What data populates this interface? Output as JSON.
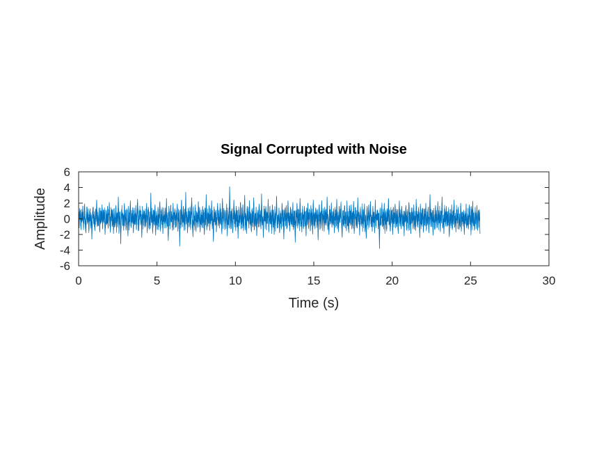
{
  "chart_data": {
    "type": "line",
    "title": "Signal Corrupted with Noise",
    "xlabel": "Time (s)",
    "ylabel": "Amplitude",
    "xlim": [
      0,
      30
    ],
    "ylim": [
      -6,
      6
    ],
    "xticks": [
      0,
      5,
      10,
      15,
      20,
      25,
      30
    ],
    "yticks": [
      -6,
      -4,
      -2,
      0,
      2,
      4,
      6
    ],
    "grid": false,
    "box": true,
    "series": [
      {
        "color": "#0072BD",
        "sample_interval": 0.04,
        "x_start": 0,
        "x_end": 25.6,
        "values": [
          0.3,
          -0.8,
          1.2,
          0.5,
          -1.4,
          0.9,
          -0.3,
          1.6,
          -1.1,
          0.2,
          1.9,
          -0.7,
          -1.8,
          0.6,
          1.1,
          -0.4,
          0.8,
          -1.5,
          0.1,
          1.3,
          -0.9,
          0.4,
          -2.6,
          0.7,
          1.5,
          -0.6,
          0.3,
          -1.2,
          1.0,
          -0.2,
          2.4,
          -1.0,
          0.5,
          -0.9,
          1.4,
          -1.7,
          0.6,
          0.2,
          -0.5,
          1.8,
          -1.3,
          0.9,
          -0.1,
          1.2,
          -2.0,
          0.4,
          0.8,
          -0.7,
          1.6,
          -1.1,
          0.3,
          2.1,
          -0.8,
          -1.4,
          0.7,
          1.0,
          -0.3,
          0.5,
          -1.9,
          1.3,
          -0.6,
          0.2,
          1.7,
          -1.2,
          0.8,
          -0.4,
          2.8,
          -1.6,
          0.1,
          0.9,
          -3.2,
          0.6,
          1.2,
          -0.8,
          0.4,
          -1.1,
          1.9,
          -0.5,
          0.7,
          -1.4,
          1.1,
          0.3,
          -2.2,
          1.5,
          -0.9,
          0.2,
          2.3,
          -1.0,
          0.6,
          -0.3,
          1.4,
          -1.8,
          0.9,
          0.1,
          -0.6,
          1.7,
          -1.3,
          0.5,
          2.5,
          -0.7,
          -1.5,
          0.8,
          1.2,
          -0.2,
          0.4,
          -2.4,
          1.6,
          -0.8,
          0.3,
          1.0,
          -1.1,
          0.7,
          -0.4,
          2.0,
          -1.6,
          0.2,
          1.3,
          -0.9,
          0.6,
          -1.2,
          3.3,
          -0.5,
          0.9,
          -1.7,
          0.4,
          1.1,
          -0.3,
          1.8,
          -2.1,
          0.7,
          0.2,
          -0.8,
          1.5,
          -1.0,
          0.3,
          2.2,
          -1.4,
          0.6,
          -0.2,
          1.2,
          -1.9,
          0.8,
          0.1,
          -0.6,
          1.4,
          -1.2,
          2.6,
          -0.7,
          0.5,
          -2.8,
          1.0,
          0.3,
          -0.9,
          1.7,
          -0.4,
          0.6,
          -1.5,
          2.0,
          -0.8,
          0.2,
          1.3,
          -1.1,
          0.7,
          -0.3,
          1.9,
          -1.6,
          0.4,
          0.9,
          -3.5,
          1.1,
          -0.5,
          2.4,
          -1.0,
          0.2,
          1.6,
          -0.7,
          0.8,
          -1.3,
          3.4,
          -0.6,
          0.3,
          -1.8,
          1.2,
          0.5,
          -0.9,
          1.5,
          -1.2,
          0.6,
          2.7,
          -0.4,
          -2.3,
          1.0,
          0.1,
          -0.7,
          1.8,
          -1.4,
          0.4,
          0.8,
          -1.0,
          2.2,
          -0.5,
          1.3,
          -1.7,
          0.6,
          0.2,
          -1.1,
          1.6,
          -0.3,
          0.9,
          -2.0,
          1.4,
          -0.8,
          3.1,
          -1.3,
          0.5,
          0.1,
          -0.6,
          1.7,
          -1.5,
          0.7,
          -0.2,
          2.3,
          -1.0,
          0.4,
          -2.9,
          1.2,
          0.8,
          -0.4,
          1.0,
          -1.6,
          0.3,
          2.0,
          -0.9,
          0.6,
          -1.2,
          1.5,
          -0.1,
          0.9,
          -1.8,
          2.6,
          -0.7,
          0.2,
          1.1,
          -1.4,
          0.5,
          -0.3,
          1.9,
          -2.2,
          0.7,
          0.4,
          -0.8,
          4.1,
          -1.1,
          0.6,
          -0.5,
          1.3,
          -1.7,
          0.2,
          2.4,
          -0.6,
          0.8,
          -1.3,
          1.6,
          -0.2,
          0.5,
          -2.5,
          1.2,
          -0.9,
          0.3,
          2.1,
          -1.0,
          0.7,
          -0.4,
          1.8,
          -1.5,
          0.1,
          3.0,
          -0.8,
          0.6,
          -1.9,
          1.4,
          -0.3,
          0.9,
          -1.2,
          2.2,
          -0.7,
          0.4,
          -1.6,
          1.1,
          0.2,
          -0.5,
          2.7,
          -1.4,
          0.6,
          -0.9,
          1.5,
          -2.1,
          0.8,
          0.3,
          -1.0,
          1.9,
          -0.6,
          0.5,
          -1.3,
          3.2,
          -0.8,
          0.2,
          -2.4,
          1.3,
          0.7,
          -0.4,
          1.6,
          -1.1,
          0.9,
          -0.2,
          2.5,
          -1.7,
          0.4,
          1.0,
          -0.7,
          0.6,
          -1.5,
          1.8,
          -0.3,
          0.8,
          -2.0,
          1.2,
          -0.9,
          0.1,
          2.9,
          -1.2,
          0.5,
          -0.6,
          1.4,
          -1.8,
          0.7,
          0.3,
          -1.1,
          2.0,
          -0.4,
          1.1,
          -2.6,
          0.6,
          0.9,
          -0.8,
          1.7,
          -1.3,
          0.2,
          2.3,
          -0.5,
          0.4,
          -1.6,
          1.5,
          -0.7,
          0.8,
          -1.0,
          2.1,
          -1.4,
          0.3,
          0.6,
          -3.0,
          1.0,
          -0.2,
          1.9,
          -1.2,
          0.5,
          0.7,
          -0.9,
          2.6,
          -0.6,
          0.1,
          -1.7,
          1.3,
          0.4,
          -1.0,
          1.6,
          -0.3,
          0.9,
          -2.2,
          1.2,
          -0.8,
          2.0,
          -1.1,
          0.6,
          0.2,
          -1.5,
          1.7,
          -0.4,
          0.8,
          -1.9,
          2.4,
          -0.7,
          0.3,
          -1.2,
          1.4,
          0.5,
          -0.9,
          1.1,
          -2.7,
          0.7,
          1.8,
          -1.3,
          0.4,
          -0.5,
          2.2,
          -1.0,
          0.6,
          0.1,
          -1.6,
          1.5,
          -0.8,
          0.9,
          -0.2,
          2.8,
          -1.4,
          0.3,
          -2.0,
          1.2,
          0.7,
          -0.6,
          1.9,
          -1.1,
          0.5,
          -0.3,
          1.3,
          -1.8,
          0.8,
          0.2,
          -0.9,
          2.5,
          -1.2,
          0.4,
          -1.5,
          1.6,
          -0.4,
          0.6,
          2.0,
          -0.7,
          -2.3,
          1.0,
          0.3,
          -1.0,
          1.7,
          -0.6,
          0.9,
          -1.4,
          2.3,
          -0.8,
          0.1,
          -1.7,
          1.4,
          0.5,
          -0.2,
          1.8,
          -1.3,
          0.7,
          -0.5,
          2.1,
          -1.9,
          0.4,
          1.1,
          -0.9,
          0.6,
          -1.2,
          2.7,
          -0.3,
          0.8,
          -2.1,
          1.3,
          0.2,
          -0.7,
          1.5,
          -1.0,
          0.9,
          -0.4,
          1.9,
          -1.6,
          0.3,
          -2.5,
          1.2,
          0.6,
          -0.8,
          1.7,
          -1.1,
          0.4,
          2.2,
          -0.6,
          0.1,
          -1.4,
          1.6,
          -0.5,
          0.8,
          -1.8,
          2.4,
          -0.9,
          0.5,
          -0.2,
          1.1,
          -1.3,
          0.7,
          -3.8,
          1.4,
          -0.7,
          0.3,
          1.8,
          -1.0,
          0.6,
          -0.4,
          2.0,
          -1.5,
          0.9,
          0.2,
          -1.2,
          1.3,
          -0.3,
          2.6,
          -0.8,
          0.5,
          -1.6,
          1.0,
          -0.1,
          0.7,
          -2.0,
          1.5,
          -0.6,
          0.4,
          1.9,
          -1.1,
          0.8,
          -0.5,
          1.2,
          -1.7,
          0.3,
          2.3,
          -0.9,
          0.6,
          -1.3,
          1.6,
          0.1,
          -0.7,
          1.0,
          -2.2,
          0.9,
          -0.3,
          1.7,
          -1.4,
          0.5,
          0.2,
          -1.0,
          2.1,
          -0.6,
          0.8,
          -1.9,
          1.4,
          -0.4,
          0.7,
          -1.2,
          1.8,
          -0.8,
          0.3,
          -1.5,
          2.5,
          -0.5,
          0.9,
          -1.1,
          1.2,
          0.4,
          -2.4,
          1.6,
          -0.7,
          0.6,
          -0.2,
          1.3,
          -1.6,
          0.8,
          0.1,
          -0.9,
          2.0,
          -1.3,
          0.5,
          -0.6,
          1.5,
          -1.8,
          0.3,
          3.1,
          -1.0,
          0.7,
          -0.4,
          1.1,
          -2.1,
          0.9,
          0.2,
          -1.4,
          1.7,
          -0.5,
          0.6,
          -1.1,
          2.2,
          -0.8,
          0.4,
          1.0,
          -1.5,
          0.8,
          -0.3,
          2.8,
          -1.2,
          0.5,
          -1.9,
          1.4,
          0.2,
          -0.7,
          1.6,
          -1.0,
          0.9,
          -0.6,
          1.2,
          -2.3,
          0.7,
          0.3,
          -0.9,
          1.8,
          -1.4,
          0.6,
          -0.2,
          2.4,
          -1.1,
          0.4,
          -1.7,
          1.3,
          0.8,
          -0.5,
          1.5,
          -1.3,
          0.1,
          -0.8,
          2.0,
          -1.6,
          0.7,
          0.9,
          -0.4,
          1.1,
          -2.0,
          0.5,
          -0.7,
          1.9,
          -1.2,
          0.3,
          0.6,
          -1.0,
          1.6,
          -0.3,
          0.8,
          -1.8,
          1.4,
          -0.6,
          2.1,
          -0.9,
          0.2,
          -1.3,
          1.0,
          0.4,
          -0.8,
          1.7,
          -1.5,
          0.6,
          -0.1,
          1.2,
          -1.9
        ]
      }
    ]
  }
}
